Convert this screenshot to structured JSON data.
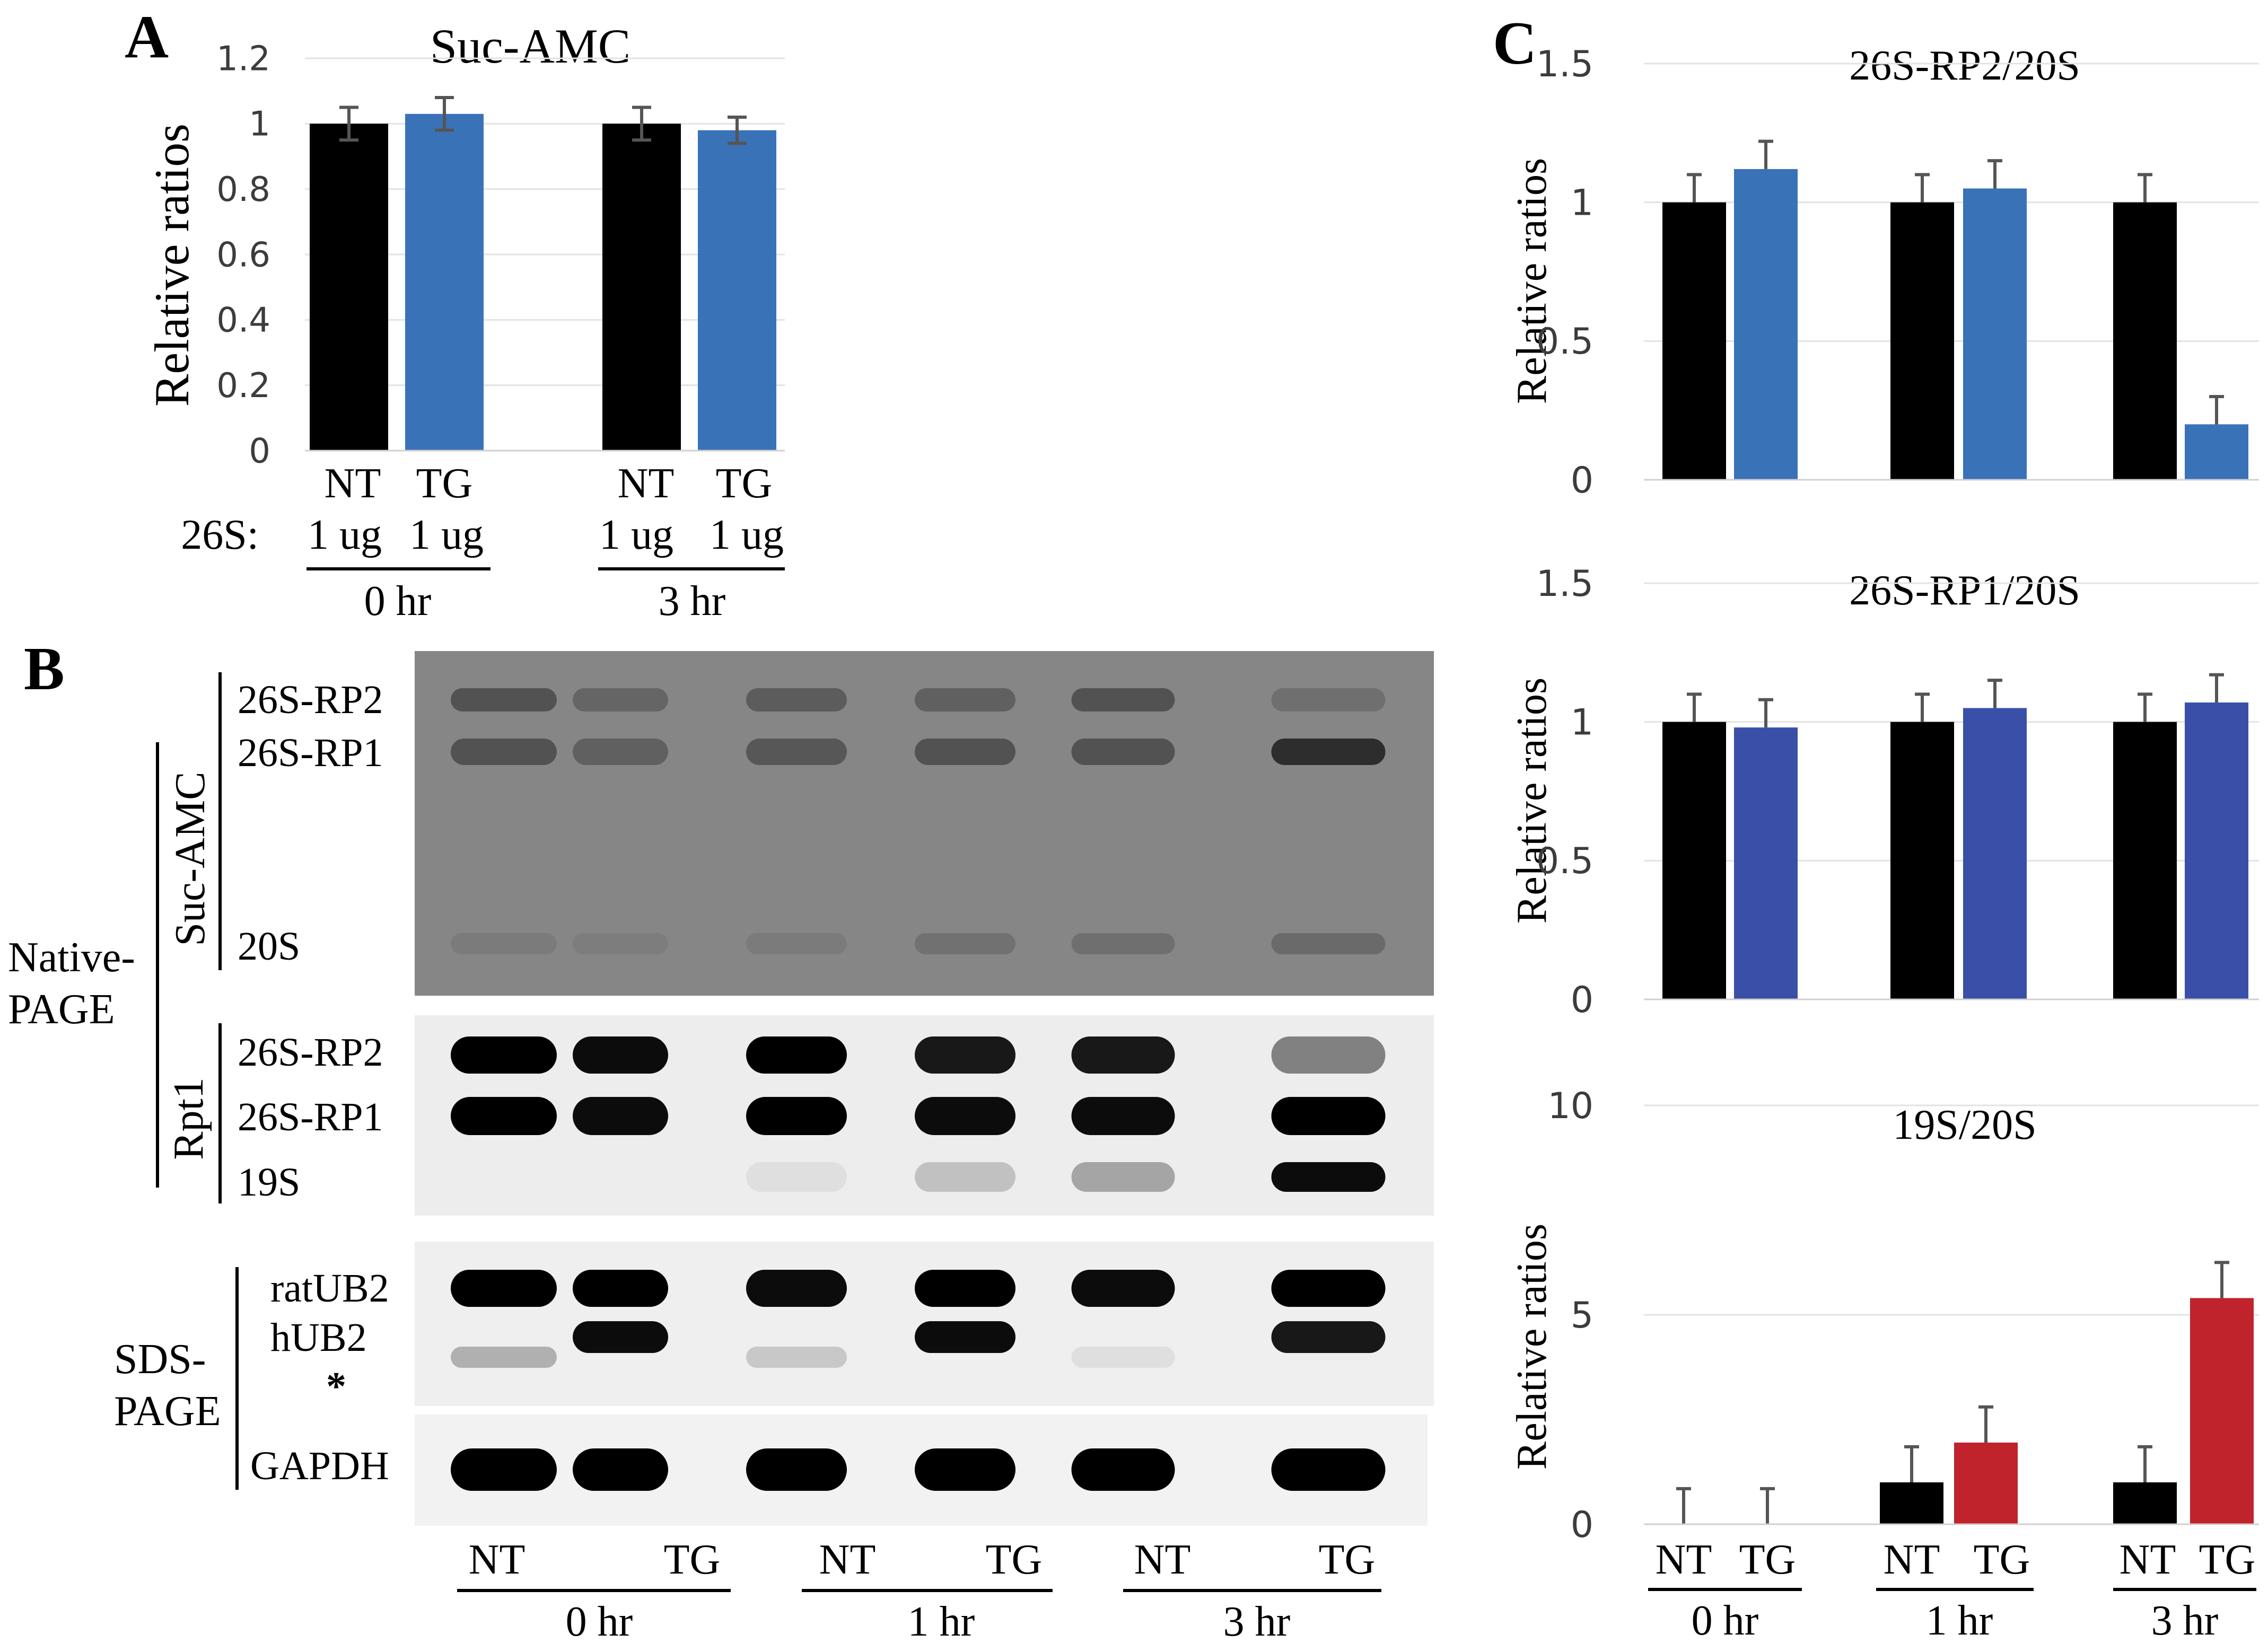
{
  "panels": {
    "A": {
      "letter": "A",
      "bar_labels": [
        "NT",
        "TG",
        "NT",
        "TG"
      ],
      "row_label": "26S:",
      "amounts": [
        "1 ug",
        "1 ug",
        "1 ug",
        "1 ug"
      ],
      "group_labels": [
        "0 hr",
        "3 hr"
      ]
    },
    "B": {
      "letter": "B",
      "native_label": [
        "Native-",
        "PAGE"
      ],
      "sds_label": [
        "SDS-",
        "PAGE"
      ],
      "suc_label": "Suc-AMC",
      "rpt1_label": "Rpt1",
      "suc_bands": [
        "26S-RP2",
        "26S-RP1",
        "20S"
      ],
      "rpt1_bands": [
        "26S-RP2",
        "26S-RP1",
        "19S"
      ],
      "sds_bands": [
        "ratUB2",
        "hUB2",
        "*"
      ],
      "gapdh_label": "GAPDH",
      "lane_labels": [
        "NT",
        "TG",
        "NT",
        "TG",
        "NT",
        "TG"
      ],
      "group_labels": [
        "0 hr",
        "1 hr",
        "3 hr"
      ],
      "blots": {
        "suc": {
          "rp2": [
            0.55,
            0.35,
            0.45,
            0.4,
            0.55,
            0.25
          ],
          "rp1": [
            0.55,
            0.4,
            0.5,
            0.55,
            0.55,
            0.95
          ],
          "s20": [
            0.12,
            0.1,
            0.12,
            0.22,
            0.25,
            0.3
          ]
        },
        "rpt1": {
          "rp2": [
            1.0,
            0.95,
            1.0,
            0.9,
            0.9,
            0.45
          ],
          "rp1": [
            1.0,
            0.95,
            1.0,
            0.95,
            0.95,
            1.0
          ],
          "s19": [
            0.0,
            0.0,
            0.05,
            0.18,
            0.3,
            0.95
          ]
        },
        "ub": {
          "rat": [
            1.0,
            1.0,
            0.95,
            1.0,
            0.95,
            1.0
          ],
          "h": [
            0.0,
            0.95,
            0.0,
            0.95,
            0.0,
            0.9
          ],
          "star": [
            0.25,
            0.0,
            0.15,
            0.0,
            0.05,
            0.0
          ]
        },
        "gapdh": [
          1.0,
          1.0,
          1.0,
          1.0,
          1.0,
          1.0
        ]
      }
    },
    "C": {
      "letter": "C",
      "lane_labels": [
        "NT",
        "TG",
        "NT",
        "TG",
        "NT",
        "TG"
      ],
      "group_labels": [
        "0 hr",
        "1 hr",
        "3 hr"
      ]
    }
  },
  "colors": {
    "nt": "#000000",
    "tg_blue": "#3a72b8",
    "tg_navy": "#3a50a8",
    "tg_red": "#c0232b",
    "axis_text": "#3c3c3c",
    "grid": "#e3e3e3",
    "error_bar": "#555555"
  },
  "chart_data": [
    {
      "type": "bar",
      "title": "Suc-AMC",
      "ylabel": "Relative ratios",
      "categories": [
        "NT",
        "TG",
        "NT",
        "TG"
      ],
      "values": [
        1.0,
        1.03,
        1.0,
        0.98
      ],
      "errors": [
        0.05,
        0.05,
        0.05,
        0.04
      ],
      "ylim": [
        0,
        1.2
      ],
      "yticks": [
        "0",
        "0.2",
        "0.4",
        "0.6",
        "0.8",
        "1",
        "1.2"
      ],
      "grid": true
    },
    {
      "type": "bar",
      "title": "26S-RP2/20S",
      "ylabel": "Relative ratios",
      "categories": [
        "NT",
        "TG",
        "NT",
        "TG",
        "NT",
        "TG"
      ],
      "values": [
        1.0,
        1.12,
        1.0,
        1.05,
        1.0,
        0.2
      ],
      "errors": [
        0.1,
        0.1,
        0.1,
        0.1,
        0.1,
        0.1
      ],
      "ylim": [
        0,
        1.5
      ],
      "yticks": [
        "0",
        "0.5",
        "1",
        "1.5"
      ],
      "grid": true
    },
    {
      "type": "bar",
      "title": "26S-RP1/20S",
      "ylabel": "Relative ratios",
      "categories": [
        "NT",
        "TG",
        "NT",
        "TG",
        "NT",
        "TG"
      ],
      "values": [
        1.0,
        0.98,
        1.0,
        1.05,
        1.0,
        1.07
      ],
      "errors": [
        0.1,
        0.1,
        0.1,
        0.1,
        0.1,
        0.1
      ],
      "ylim": [
        0,
        1.5
      ],
      "yticks": [
        "0",
        "0.5",
        "1",
        "1.5"
      ],
      "grid": true
    },
    {
      "type": "bar",
      "title": "19S/20S",
      "ylabel": "Relative ratios",
      "categories": [
        "NT",
        "TG",
        "NT",
        "TG",
        "NT",
        "TG"
      ],
      "values": [
        0.0,
        0.0,
        1.0,
        1.95,
        1.0,
        5.4
      ],
      "errors": [
        0.85,
        0.85,
        0.85,
        0.85,
        0.85,
        0.85
      ],
      "ylim": [
        0,
        10
      ],
      "yticks": [
        "0",
        "5",
        "10"
      ],
      "grid": true
    }
  ]
}
